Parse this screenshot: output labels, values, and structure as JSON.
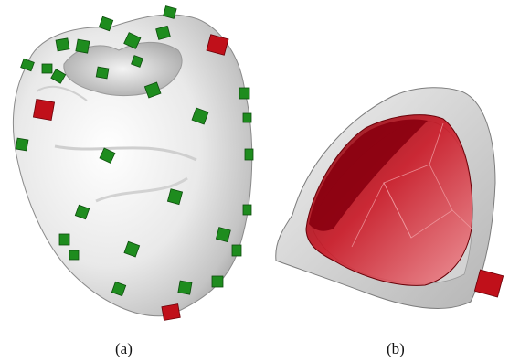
{
  "figure": {
    "panels": [
      {
        "id": "a",
        "label": "(a)"
      },
      {
        "id": "b",
        "label": "(b)"
      }
    ],
    "colors": {
      "surface": "#e6e6e6",
      "green_marker": "#1e8c1e",
      "red_marker": "#c0101a",
      "red_volume": "#c8101e",
      "translucent_shell": "#c8c8c8"
    }
  }
}
